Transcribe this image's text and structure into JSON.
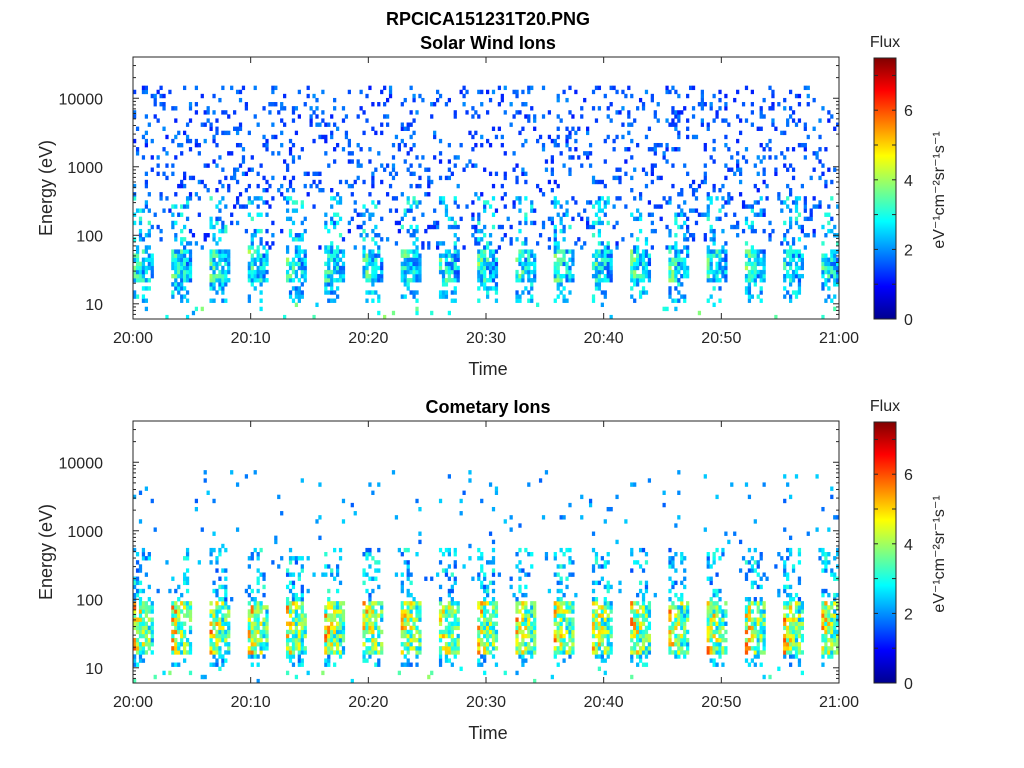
{
  "figure": {
    "title": "RPCICA151231T20.PNG"
  },
  "colormap": {
    "stops": [
      "#00008f",
      "#0000ff",
      "#0080ff",
      "#00ffff",
      "#80ff80",
      "#ffff00",
      "#ff8000",
      "#ff0000",
      "#800000"
    ],
    "vmin": 0,
    "vmax": 7.5
  },
  "chart_data": [
    {
      "type": "heatmap",
      "title": "Solar Wind Ions",
      "xlabel": "Time",
      "ylabel": "Energy (eV)",
      "x_ticks": [
        "20:00",
        "20:10",
        "20:20",
        "20:30",
        "20:40",
        "20:50",
        "21:00"
      ],
      "y_ticks": [
        "10",
        "100",
        "1000",
        "10000"
      ],
      "y_scale": "log",
      "ylim": [
        6,
        40000
      ],
      "xlim_minutes": [
        0,
        60
      ],
      "colorbar": {
        "label": "Flux",
        "unit": "eV⁻¹cm⁻²sr⁻¹s⁻¹",
        "ticks": [
          "0",
          "2",
          "4",
          "6"
        ],
        "range": [
          0,
          7.5
        ]
      },
      "pattern": {
        "sweep_period_minutes": 3.25,
        "peak_flux": 4.3,
        "core_energy_eV": [
          20,
          60
        ],
        "scatter_energy_eV": [
          60,
          15000
        ],
        "scatter_flux": 1.1
      }
    },
    {
      "type": "heatmap",
      "title": "Cometary Ions",
      "xlabel": "Time",
      "ylabel": "Energy (eV)",
      "x_ticks": [
        "20:00",
        "20:10",
        "20:20",
        "20:30",
        "20:40",
        "20:50",
        "21:00"
      ],
      "y_ticks": [
        "10",
        "100",
        "1000",
        "10000"
      ],
      "y_scale": "log",
      "ylim": [
        6,
        40000
      ],
      "xlim_minutes": [
        0,
        60
      ],
      "colorbar": {
        "label": "Flux",
        "unit": "eV⁻¹cm⁻²sr⁻¹s⁻¹",
        "ticks": [
          "0",
          "2",
          "4",
          "6"
        ],
        "range": [
          0,
          7.5
        ]
      },
      "pattern": {
        "sweep_period_minutes": 3.25,
        "peak_flux": 6.2,
        "core_energy_eV": [
          15,
          100
        ],
        "scatter_energy_eV": [
          100,
          8000
        ],
        "scatter_flux": 1.6
      }
    }
  ]
}
